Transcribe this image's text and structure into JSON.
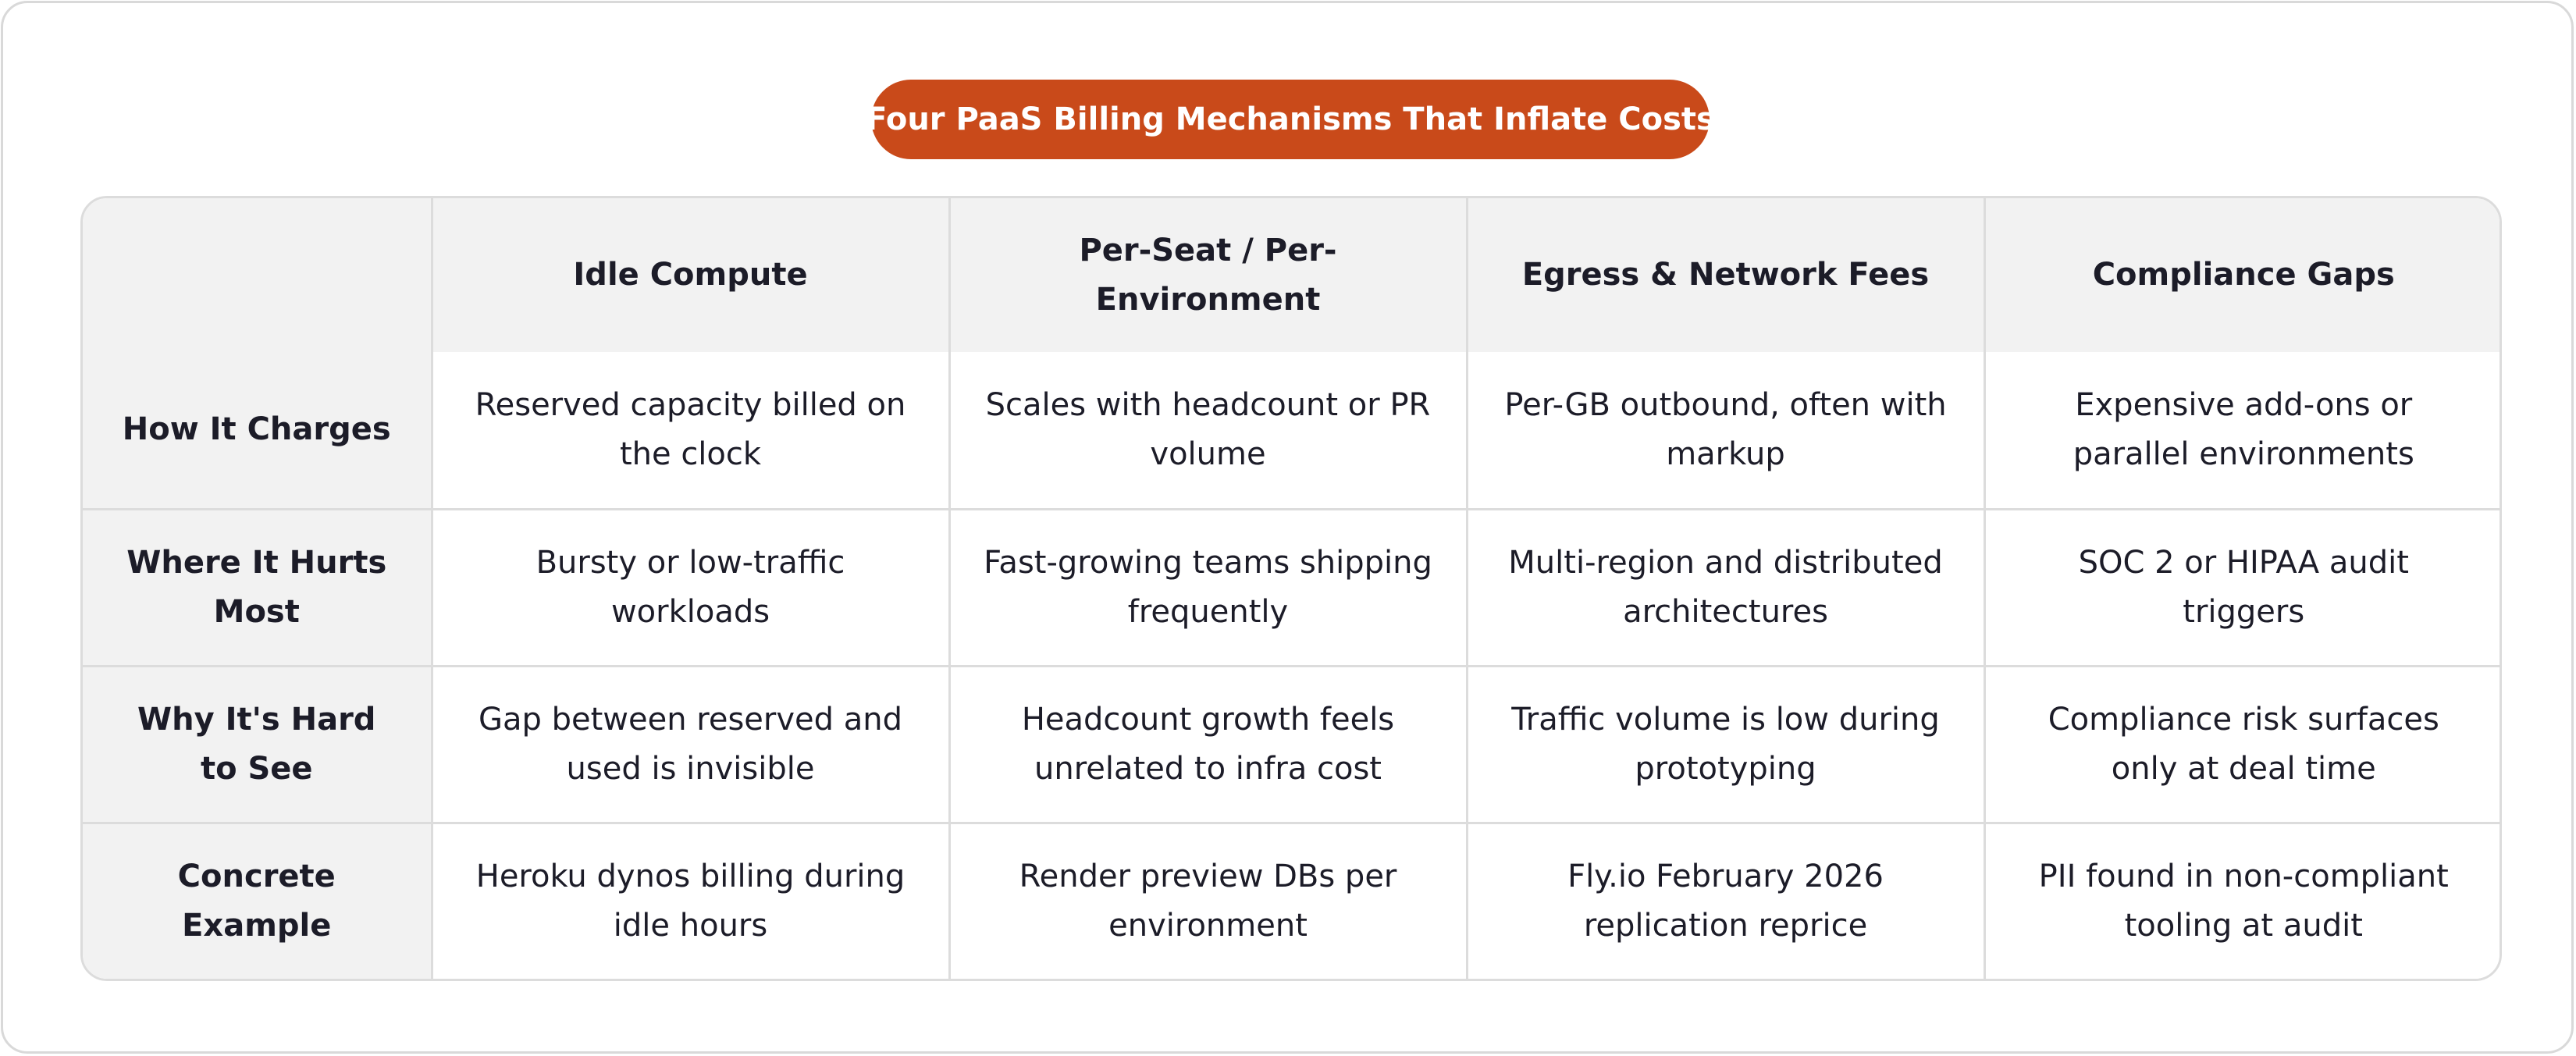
{
  "title": "Four PaaS Billing Mechanisms That Inflate Costs",
  "colors": {
    "title_background": "#c94a1a",
    "title_text": "#ffffff",
    "header_background": "#f2f2f2",
    "border": "#dcdcdc",
    "text": "#1c1c28"
  },
  "table": {
    "corner": "",
    "columns": [
      "Idle Compute",
      "Per-Seat / Per-Environment",
      "Egress & Network Fees",
      "Compliance Gaps"
    ],
    "rows": [
      {
        "label": "How It Charges",
        "cells": [
          "Reserved capacity billed on the clock",
          "Scales with headcount or PR volume",
          "Per-GB outbound, often with markup",
          "Expensive add-ons or parallel environments"
        ]
      },
      {
        "label": "Where It Hurts Most",
        "cells": [
          "Bursty or low-traffic workloads",
          "Fast-growing teams shipping frequently",
          "Multi-region and distributed architectures",
          "SOC 2 or HIPAA audit triggers"
        ]
      },
      {
        "label": "Why It's Hard to See",
        "cells": [
          "Gap between reserved and used is invisible",
          "Headcount growth feels unrelated to infra cost",
          "Traffic volume is low during prototyping",
          "Compliance risk surfaces only at deal time"
        ]
      },
      {
        "label": "Concrete Example",
        "cells": [
          "Heroku dynos billing during idle hours",
          "Render preview DBs per environment",
          "Fly.io February 2026 replication reprice",
          "PII found in non-compliant tooling at audit"
        ]
      }
    ]
  }
}
